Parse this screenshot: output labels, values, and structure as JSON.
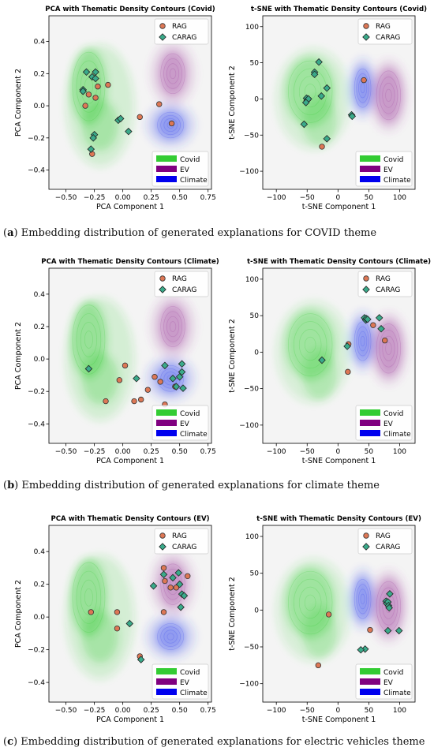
{
  "captions": [
    {
      "letter": "a",
      "text": " Embedding distribution of generated explanations for COVID theme"
    },
    {
      "letter": "b",
      "text": " Embedding distribution of generated explanations for climate theme"
    },
    {
      "letter": "c",
      "text": " Embedding distribution of generated explanations for electric vehicles theme"
    }
  ],
  "legend": {
    "points": [
      {
        "label": "RAG",
        "color": "#dd7755",
        "marker": "circle"
      },
      {
        "label": "CARAG",
        "color": "#3aaa8a",
        "marker": "diamond"
      }
    ],
    "themes": [
      {
        "label": "Covid",
        "color": "#33cc33"
      },
      {
        "label": "EV",
        "color": "#800080"
      },
      {
        "label": "Climate",
        "color": "#0000ee"
      }
    ]
  },
  "chart_data": [
    {
      "type": "scatter",
      "method": "pca",
      "title": "PCA with Thematic Density Contours (Covid)",
      "xlabel": "PCA Component 1",
      "ylabel": "PCA Component 2",
      "xlim": [
        -0.65,
        0.78
      ],
      "ylim": [
        -0.52,
        0.56
      ],
      "xticks": [
        -0.5,
        -0.25,
        0.0,
        0.25,
        0.5,
        0.75
      ],
      "xtick_labels": [
        "−0.50",
        "−0.25",
        "0.00",
        "0.25",
        "0.50",
        "0.75"
      ],
      "yticks": [
        -0.4,
        -0.2,
        0.0,
        0.2,
        0.4
      ],
      "ytick_labels": [
        "−0.4",
        "−0.2",
        "0.0",
        "0.2",
        "0.4"
      ],
      "series": [
        {
          "name": "RAG",
          "points": [
            [
              -0.33,
              0.0
            ],
            [
              -0.3,
              0.07
            ],
            [
              -0.24,
              0.05
            ],
            [
              -0.22,
              0.12
            ],
            [
              -0.13,
              0.13
            ],
            [
              -0.27,
              -0.3
            ],
            [
              0.15,
              -0.07
            ],
            [
              0.32,
              0.01
            ],
            [
              0.43,
              -0.11
            ]
          ]
        },
        {
          "name": "CARAG",
          "points": [
            [
              -0.35,
              0.1
            ],
            [
              -0.32,
              0.21
            ],
            [
              -0.27,
              0.18
            ],
            [
              -0.24,
              0.21
            ],
            [
              -0.24,
              0.17
            ],
            [
              -0.28,
              -0.27
            ],
            [
              -0.25,
              -0.18
            ],
            [
              -0.26,
              -0.2
            ],
            [
              -0.04,
              -0.09
            ],
            [
              -0.02,
              -0.08
            ],
            [
              0.05,
              -0.16
            ],
            [
              -0.35,
              0.09
            ]
          ]
        }
      ]
    },
    {
      "type": "scatter",
      "method": "tsne",
      "title": "t-SNE with Thematic Density Contours (Covid)",
      "xlabel": "t-SNE Component 1",
      "ylabel": "t-SNE Component 2",
      "xlim": [
        -122,
        125
      ],
      "ylim": [
        -125,
        115
      ],
      "xticks": [
        -100,
        -50,
        0,
        50,
        100
      ],
      "xtick_labels": [
        "−100",
        "−50",
        "0",
        "50",
        "100"
      ],
      "yticks": [
        -100,
        -50,
        0,
        50,
        100
      ],
      "ytick_labels": [
        "−100",
        "−50",
        "0",
        "50",
        "100"
      ],
      "series": [
        {
          "name": "RAG",
          "points": [
            [
              42,
              26
            ],
            [
              -26,
              -66
            ]
          ]
        },
        {
          "name": "CARAG",
          "points": [
            [
              -31,
              51
            ],
            [
              -38,
              37
            ],
            [
              -38,
              34
            ],
            [
              -18,
              15
            ],
            [
              -51,
              1
            ],
            [
              -50,
              -2
            ],
            [
              -48,
              0
            ],
            [
              -52,
              -5
            ],
            [
              -27,
              4
            ],
            [
              -55,
              -35
            ],
            [
              -18,
              -55
            ],
            [
              22,
              -22
            ],
            [
              23,
              -24
            ]
          ]
        }
      ]
    },
    {
      "type": "scatter",
      "method": "pca",
      "title": "PCA with Thematic Density Contours (Climate)",
      "xlabel": "PCA Component 1",
      "ylabel": "PCA Component 2",
      "xlim": [
        -0.65,
        0.78
      ],
      "ylim": [
        -0.52,
        0.56
      ],
      "xticks": [
        -0.5,
        -0.25,
        0.0,
        0.25,
        0.5,
        0.75
      ],
      "xtick_labels": [
        "−0.50",
        "−0.25",
        "0.00",
        "0.25",
        "0.50",
        "0.75"
      ],
      "yticks": [
        -0.4,
        -0.2,
        0.0,
        0.2,
        0.4
      ],
      "ytick_labels": [
        "−0.4",
        "−0.2",
        "0.0",
        "0.2",
        "0.4"
      ],
      "series": [
        {
          "name": "RAG",
          "points": [
            [
              0.02,
              -0.04
            ],
            [
              -0.03,
              -0.13
            ],
            [
              -0.15,
              -0.26
            ],
            [
              0.1,
              -0.26
            ],
            [
              0.16,
              -0.25
            ],
            [
              0.22,
              -0.19
            ],
            [
              0.28,
              -0.11
            ],
            [
              0.33,
              -0.14
            ],
            [
              0.37,
              -0.28
            ],
            [
              0.46,
              -0.17
            ]
          ]
        },
        {
          "name": "CARAG",
          "points": [
            [
              -0.3,
              -0.06
            ],
            [
              0.12,
              -0.12
            ],
            [
              0.37,
              -0.04
            ],
            [
              0.44,
              -0.12
            ],
            [
              0.47,
              -0.17
            ],
            [
              0.5,
              -0.11
            ],
            [
              0.52,
              -0.08
            ],
            [
              0.52,
              -0.03
            ],
            [
              0.53,
              -0.18
            ]
          ]
        }
      ]
    },
    {
      "type": "scatter",
      "method": "tsne",
      "title": "t-SNE with Thematic Density Contours (Climate)",
      "xlabel": "t-SNE Component 1",
      "ylabel": "t-SNE Component 2",
      "xlim": [
        -122,
        125
      ],
      "ylim": [
        -125,
        115
      ],
      "xticks": [
        -100,
        -50,
        0,
        50,
        100
      ],
      "xtick_labels": [
        "−100",
        "−50",
        "0",
        "50",
        "100"
      ],
      "yticks": [
        -100,
        -50,
        0,
        50,
        100
      ],
      "ytick_labels": [
        "−100",
        "−50",
        "0",
        "50",
        "100"
      ],
      "series": [
        {
          "name": "RAG",
          "points": [
            [
              17,
              11
            ],
            [
              57,
              37
            ],
            [
              76,
              16
            ],
            [
              16,
              -27
            ]
          ]
        },
        {
          "name": "CARAG",
          "points": [
            [
              43,
              47
            ],
            [
              45,
              44
            ],
            [
              46,
              46
            ],
            [
              48,
              45
            ],
            [
              67,
              47
            ],
            [
              70,
              32
            ],
            [
              15,
              8
            ],
            [
              -26,
              -11
            ]
          ]
        }
      ]
    },
    {
      "type": "scatter",
      "method": "pca",
      "title": "PCA with Thematic Density Contours (EV)",
      "xlabel": "PCA Component 1",
      "ylabel": "PCA Component 2",
      "xlim": [
        -0.65,
        0.78
      ],
      "ylim": [
        -0.52,
        0.56
      ],
      "xticks": [
        -0.5,
        -0.25,
        0.0,
        0.25,
        0.5,
        0.75
      ],
      "xtick_labels": [
        "−0.50",
        "−0.25",
        "0.00",
        "0.25",
        "0.50",
        "0.75"
      ],
      "yticks": [
        -0.4,
        -0.2,
        0.0,
        0.2,
        0.4
      ],
      "ytick_labels": [
        "−0.4",
        "−0.2",
        "0.0",
        "0.2",
        "0.4"
      ],
      "series": [
        {
          "name": "RAG",
          "points": [
            [
              -0.28,
              0.03
            ],
            [
              -0.05,
              0.03
            ],
            [
              -0.05,
              -0.07
            ],
            [
              0.15,
              -0.24
            ],
            [
              0.36,
              0.3
            ],
            [
              0.37,
              0.22
            ],
            [
              0.42,
              0.18
            ],
            [
              0.47,
              0.18
            ],
            [
              0.57,
              0.25
            ],
            [
              0.36,
              0.03
            ]
          ]
        },
        {
          "name": "CARAG",
          "points": [
            [
              0.27,
              0.19
            ],
            [
              0.36,
              0.26
            ],
            [
              0.44,
              0.24
            ],
            [
              0.49,
              0.27
            ],
            [
              0.5,
              0.2
            ],
            [
              0.52,
              0.14
            ],
            [
              0.54,
              0.13
            ],
            [
              0.51,
              0.06
            ],
            [
              0.06,
              -0.04
            ],
            [
              0.16,
              -0.26
            ]
          ]
        }
      ]
    },
    {
      "type": "scatter",
      "method": "tsne",
      "title": "t-SNE with Thematic Density Contours (EV)",
      "xlabel": "t-SNE Component 1",
      "ylabel": "t-SNE Component 2",
      "xlim": [
        -122,
        125
      ],
      "ylim": [
        -125,
        115
      ],
      "xticks": [
        -100,
        -50,
        0,
        50,
        100
      ],
      "xtick_labels": [
        "−100",
        "−50",
        "0",
        "50",
        "100"
      ],
      "yticks": [
        -100,
        -50,
        0,
        50,
        100
      ],
      "ytick_labels": [
        "−100",
        "−50",
        "0",
        "50",
        "100"
      ],
      "series": [
        {
          "name": "RAG",
          "points": [
            [
              -15,
              -6
            ],
            [
              -32,
              -75
            ],
            [
              52,
              -27
            ]
          ]
        },
        {
          "name": "CARAG",
          "points": [
            [
              78,
              12
            ],
            [
              79,
              9
            ],
            [
              81,
              11
            ],
            [
              82,
              6
            ],
            [
              84,
              22
            ],
            [
              83,
              3
            ],
            [
              81,
              -28
            ],
            [
              99,
              -28
            ],
            [
              44,
              -53
            ],
            [
              37,
              -54
            ]
          ]
        }
      ]
    }
  ]
}
